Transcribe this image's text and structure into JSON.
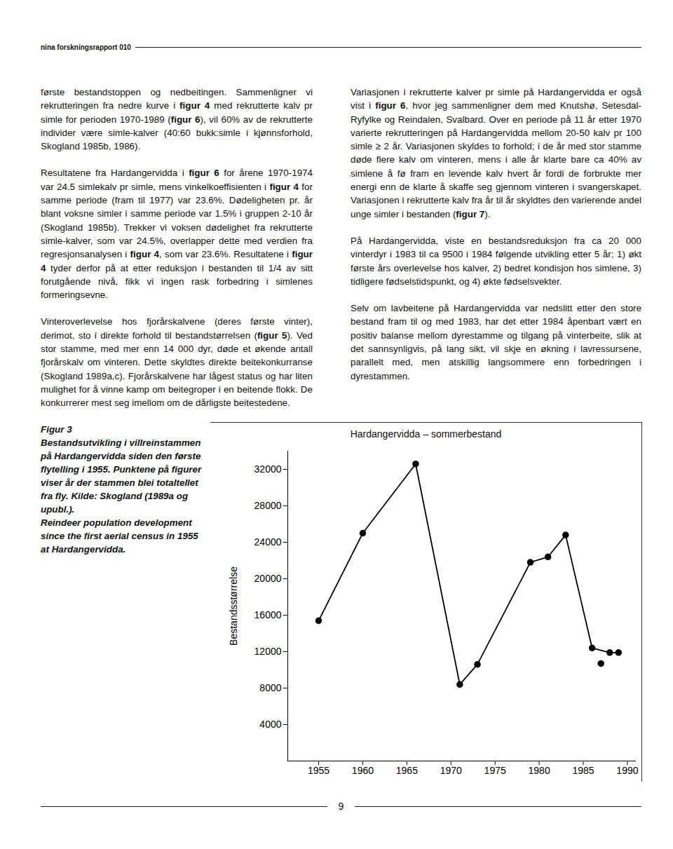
{
  "header": "nina forskningsrapport 010",
  "columns": [
    [
      [
        "første bestandstoppen og nedbeitingen. Sammenligner vi rekrutteringen fra nedre kurve i ",
        {
          "bold": "figur 4"
        },
        " med rekrutterte kalv pr simle for perioden 1970-1989 (",
        {
          "bold": "figur 6"
        },
        "), vil 60% av de rekrutterte individer være simle-kalver (40:60 bukk:simle i kjønnsforhold, Skogland 1985b, 1986)."
      ],
      [
        "Resultatene fra Hardangervidda i ",
        {
          "bold": "figur 6"
        },
        " for årene 1970-1974 var 24.5 simlekalv pr simle, mens vinkelkoeffisienten i ",
        {
          "bold": "figur 4"
        },
        " for samme periode (fram til 1977) var 23.6%. Dødeligheten pr. år blant voksne simler i samme periode var 1.5% i gruppen 2-10 år (Skogland 1985b). Trekker vi voksen dødelighet fra rekrutterte simle-kalver, som var 24.5%, overlapper dette med verdien fra regresjonsanalysen i ",
        {
          "bold": "figur 4"
        },
        ", som var 23.6%. Resultatene i ",
        {
          "bold": "figur 4"
        },
        " tyder derfor på at etter reduksjon i bestanden til 1/4 av sitt forutgående nivå, fikk vi ingen rask forbedring i simlenes formeringsevne."
      ],
      [
        "Vinteroverlevelse hos fjorårskalvene (deres første vinter), derimot, sto i direkte forhold til bestandstørrelsen (",
        {
          "bold": "figur 5"
        },
        "). Ved stor stamme, med mer enn 14 000 dyr, døde et økende antall fjorårskalv om vinteren. Dette skyldtes direkte beitekonkurranse (Skogland 1989a,c). Fjorårskalvene har lågest status og har liten mulighet for å vinne kamp om beitegroper i en beitende flokk. De konkurrerer mest seg imellom om de dårligste beitestedene."
      ]
    ],
    [
      [
        "Variasjonen i rekrutterte kalver pr simle på Hardangervidda er også vist i ",
        {
          "bold": "figur 6"
        },
        ", hvor jeg sammenligner dem med Knutshø, Setesdal-Ryfylke og Reindalen, Svalbard. Over en periode på 11 år etter 1970 varierte rekrutteringen på Hardangervidda mellom 20-50 kalv pr 100 simle ≥ 2 år. Variasjonen skyldes to forhold; i de år med stor stamme døde flere kalv om vinteren, mens i alle år klarte bare ca 40% av simlene å fø fram en levende kalv hvert år fordi de forbrukte mer energi enn de klarte å skaffe seg gjennom vinteren i svangerskapet. Variasjonen i rekrutterte kalv fra år til år skyldtes den varierende andel unge simler i bestanden (",
        {
          "bold": "figur 7"
        },
        ")."
      ],
      [
        "På Hardangervidda, viste en bestandsreduksjon fra ca 20 000 vinterdyr i 1983 til ca 9500 i 1984 følgende utvikling etter 5 år; 1) økt første års overlevelse hos kalver, 2) bedret kondisjon hos simlene, 3) tidligere fødselstidspunkt, og 4) økte fødselsvekter."
      ],
      [
        "Selv om lavbeitene på Hardangervidda var nedslitt etter den store bestand fram til og med 1983, har det etter 1984 åpenbart vært en positiv balanse mellom dyrestamme og tilgang på vinterbeite, slik at det sannsynligvis, på lang sikt, vil skje en økning i lavressursene, parallelt med, men atskillig langsommere enn forbedringen i dyrestammen."
      ]
    ]
  ],
  "caption": [
    "Figur 3",
    "Bestandsutvikling i villreinstammen på Hardangervidda siden den første flytelling i 1955. Punktene på figurer viser år der stammen blei totaltellet fra fly. Kilde: Skogland (1989a og upubl.).",
    "Reindeer population development since the first aerial census in 1955 at Hardangervidda."
  ],
  "chart_data": {
    "type": "line",
    "title": "Hardangervidda – sommerbestand",
    "y_label": "Bestandsstørrelse",
    "xlim": [
      1951.5,
      1991
    ],
    "xticks": [
      1955,
      1960,
      1965,
      1970,
      1975,
      1980,
      1985,
      1990
    ],
    "ylim": [
      0,
      34000
    ],
    "yticks": [
      4000,
      8000,
      12000,
      16000,
      20000,
      24000,
      28000,
      32000
    ],
    "grid": false,
    "series": [
      {
        "color": "#000000",
        "marker": "circle",
        "line_style": "solid",
        "x": [
          1955,
          1960,
          1966,
          1971,
          1973,
          1979,
          1981,
          1983,
          1986,
          1988,
          1989
        ],
        "values": [
          15400,
          25000,
          32600,
          8400,
          10600,
          21800,
          22400,
          24800,
          12400,
          11900,
          11900
        ]
      },
      {
        "color": "#000000",
        "marker": "circle",
        "line_style": "none",
        "x": [
          1987
        ],
        "values": [
          10700
        ]
      }
    ]
  },
  "page_number": "9"
}
